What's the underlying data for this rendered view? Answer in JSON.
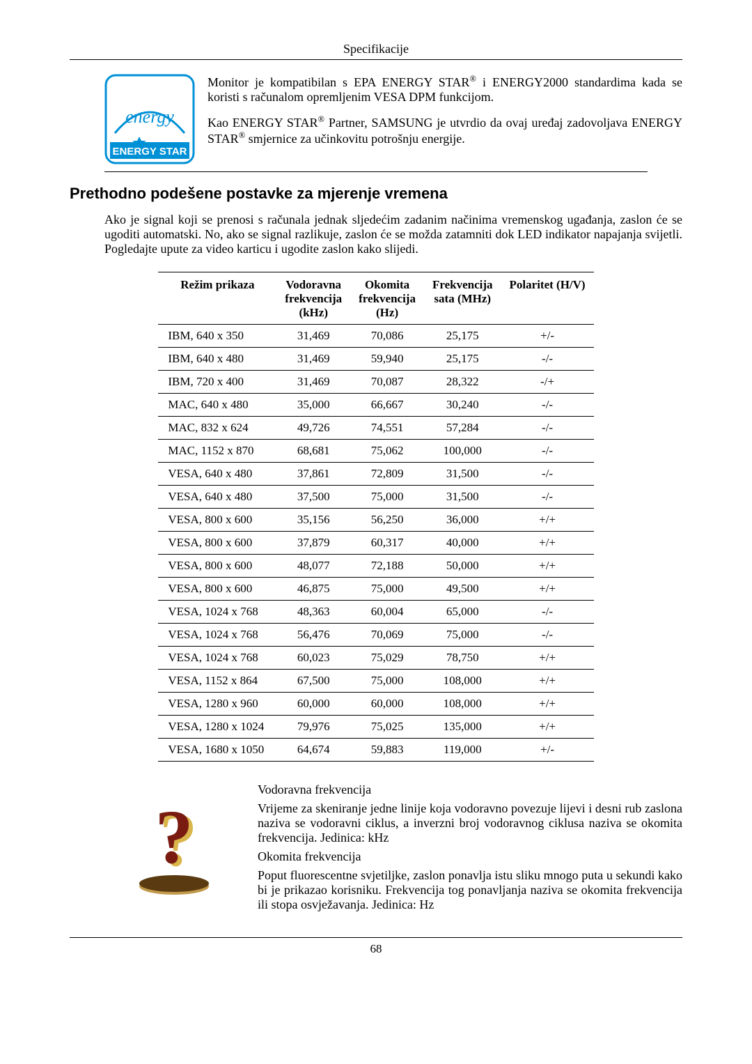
{
  "header": "Specifikacije",
  "page_number": "68",
  "intro": {
    "p1_a": "Monitor je kompatibilan s EPA ENERGY STAR",
    "p1_b": " i ENERGY2000 standardima kada se koristi s računalom opremljenim VESA DPM funkcijom.",
    "p2_a": "Kao ENERGY STAR",
    "p2_b": " Partner, SAMSUNG je utvrdio da ovaj uređaj zadovoljava ENERGY STAR",
    "p2_c": " smjernice za učinkovitu potrošnju energije.",
    "reg": "®"
  },
  "section_title": "Prethodno podešene postavke za mjerenje vremena",
  "paragraph": "Ako je signal koji se prenosi s računala jednak sljedećim zadanim načinima vremenskog ugađanja, zaslon će se ugoditi automatski. No, ako se signal razlikuje, zaslon će se možda zatamniti dok LED indikator napajanja svijetli. Pogledajte upute za video karticu i ugodite zaslon kako slijedi.",
  "table": {
    "headers": {
      "mode": "Režim prikaza",
      "hfreq_l1": "Vodoravna",
      "hfreq_l2": "frekvencija",
      "hfreq_l3": "(kHz)",
      "vfreq_l1": "Okomita",
      "vfreq_l2": "frekvencija",
      "vfreq_l3": "(Hz)",
      "clock_l1": "Frekvencija",
      "clock_l2": "sata (MHz)",
      "pol": "Polaritet (H/V)"
    },
    "rows": [
      {
        "mode": "IBM, 640 x 350",
        "h": "31,469",
        "v": "70,086",
        "c": "25,175",
        "p": "+/-"
      },
      {
        "mode": "IBM, 640 x 480",
        "h": "31,469",
        "v": "59,940",
        "c": "25,175",
        "p": "-/-"
      },
      {
        "mode": "IBM, 720 x 400",
        "h": "31,469",
        "v": "70,087",
        "c": "28,322",
        "p": "-/+"
      },
      {
        "mode": "MAC, 640 x 480",
        "h": "35,000",
        "v": "66,667",
        "c": "30,240",
        "p": "-/-"
      },
      {
        "mode": "MAC, 832 x 624",
        "h": "49,726",
        "v": "74,551",
        "c": "57,284",
        "p": "-/-"
      },
      {
        "mode": "MAC, 1152 x 870",
        "h": "68,681",
        "v": "75,062",
        "c": "100,000",
        "p": "-/-"
      },
      {
        "mode": "VESA, 640 x 480",
        "h": "37,861",
        "v": "72,809",
        "c": "31,500",
        "p": "-/-"
      },
      {
        "mode": "VESA, 640 x 480",
        "h": "37,500",
        "v": "75,000",
        "c": "31,500",
        "p": "-/-"
      },
      {
        "mode": "VESA, 800 x 600",
        "h": "35,156",
        "v": "56,250",
        "c": "36,000",
        "p": "+/+"
      },
      {
        "mode": "VESA, 800 x 600",
        "h": "37,879",
        "v": "60,317",
        "c": "40,000",
        "p": "+/+"
      },
      {
        "mode": "VESA, 800 x 600",
        "h": "48,077",
        "v": "72,188",
        "c": "50,000",
        "p": "+/+"
      },
      {
        "mode": "VESA, 800 x 600",
        "h": "46,875",
        "v": "75,000",
        "c": "49,500",
        "p": "+/+"
      },
      {
        "mode": "VESA, 1024 x 768",
        "h": "48,363",
        "v": "60,004",
        "c": "65,000",
        "p": "-/-"
      },
      {
        "mode": "VESA, 1024 x 768",
        "h": "56,476",
        "v": "70,069",
        "c": "75,000",
        "p": "-/-"
      },
      {
        "mode": "VESA, 1024 x 768",
        "h": "60,023",
        "v": "75,029",
        "c": "78,750",
        "p": "+/+"
      },
      {
        "mode": "VESA, 1152 x 864",
        "h": "67,500",
        "v": "75,000",
        "c": "108,000",
        "p": "+/+"
      },
      {
        "mode": "VESA, 1280 x 960",
        "h": "60,000",
        "v": "60,000",
        "c": "108,000",
        "p": "+/+"
      },
      {
        "mode": "VESA, 1280 x 1024",
        "h": "79,976",
        "v": "75,025",
        "c": "135,000",
        "p": "+/+"
      },
      {
        "mode": "VESA, 1680 x 1050",
        "h": "64,674",
        "v": "59,883",
        "c": "119,000",
        "p": "+/-"
      }
    ]
  },
  "footer": {
    "hfreq_title": "Vodoravna frekvencija",
    "hfreq_text": "Vrijeme za skeniranje jedne linije koja vodoravno povezuje lijevi i desni rub zaslona naziva se vodoravni ciklus, a inverzni broj vodoravnog ciklusa naziva se okomita frekvencija. Jedinica: kHz",
    "vfreq_title": "Okomita frekvencija",
    "vfreq_text": "Poput fluorescentne svjetiljke, zaslon ponavlja istu sliku mnogo puta u sekundi kako bi je prikazao korisniku. Frekvencija tog ponavljanja naziva se okomita frekvencija ili stopa osvježavanja. Jedinica: Hz"
  },
  "colors": {
    "energy_blue": "#0090d6",
    "energy_label_bg": "#0090d6",
    "energy_text": "#ffffff",
    "qmark_red": "#7a1b11",
    "qmark_shadow": "#d9b54a",
    "qmark_base_dark": "#5a3a10",
    "qmark_base_light": "#c19a4c"
  }
}
